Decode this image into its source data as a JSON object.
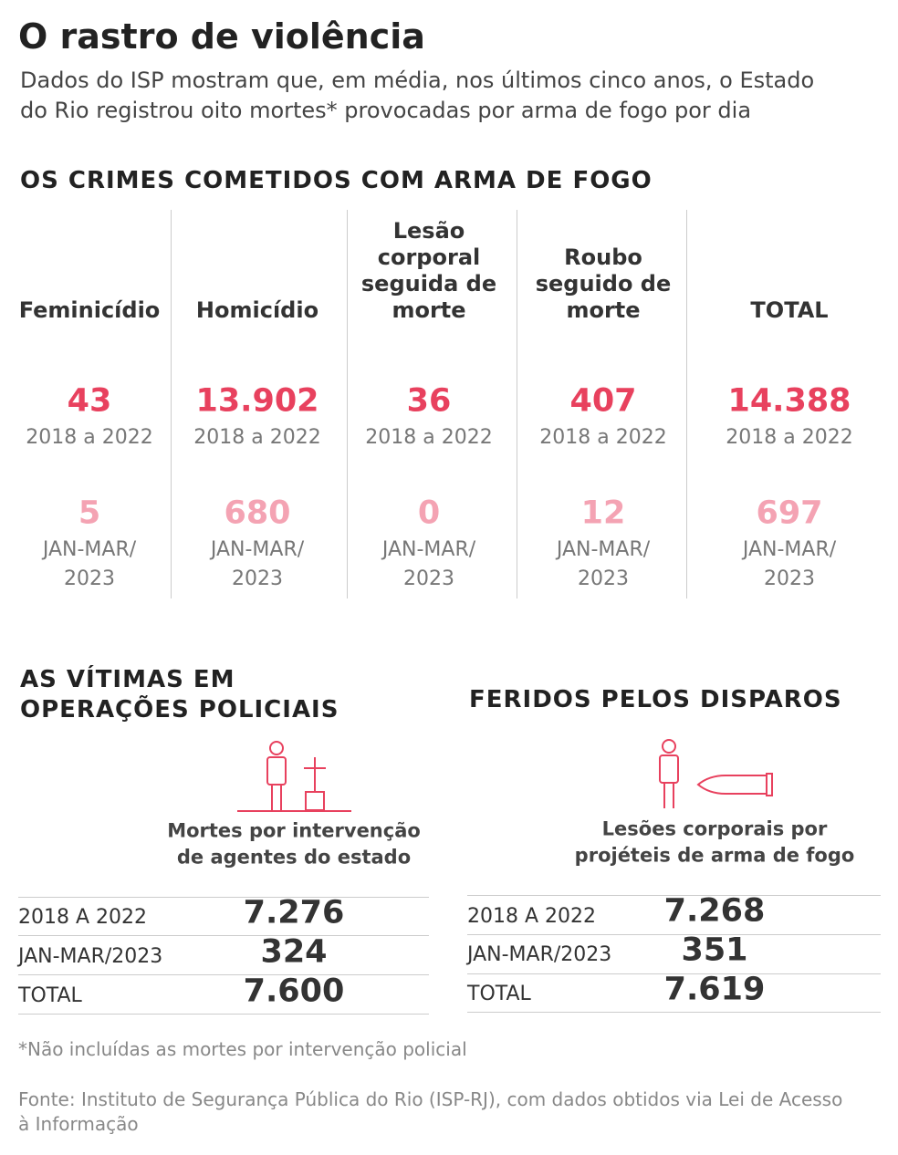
{
  "header": {
    "title": "O rastro de violência",
    "subtitle": [
      "Dados do ISP mostram que, em média, nos últimos cinco anos, o Estado",
      "do Rio registrou oito mortes* provocadas por arma de fogo por dia"
    ]
  },
  "crimes": {
    "heading": "OS CRIMES COMETIDOS COM ARMA DE FOGO",
    "columns": [
      {
        "label": [
          "Feminicídio"
        ],
        "total": "43",
        "total_period": "2018 a 2022",
        "recent": "5",
        "recent_period": [
          "JAN-MAR/",
          "2023"
        ]
      },
      {
        "label": [
          "Homicídio"
        ],
        "total": "13.902",
        "total_period": "2018 a 2022",
        "recent": "680",
        "recent_period": [
          "JAN-MAR/",
          "2023"
        ]
      },
      {
        "label": [
          "Lesão",
          "corporal",
          "seguida de",
          "morte"
        ],
        "total": "36",
        "total_period": "2018 a 2022",
        "recent": "0",
        "recent_period": [
          "JAN-MAR/",
          "2023"
        ]
      },
      {
        "label": [
          "Roubo",
          "seguido de",
          "morte"
        ],
        "total": "407",
        "total_period": "2018 a 2022",
        "recent": "12",
        "recent_period": [
          "JAN-MAR/",
          "2023"
        ]
      },
      {
        "label": [
          "TOTAL"
        ],
        "total": "14.388",
        "total_period": "2018 a 2022",
        "recent": "697",
        "recent_period": [
          "JAN-MAR/",
          "2023"
        ]
      }
    ]
  },
  "panels": [
    {
      "heading": [
        "AS VÍTIMAS EM",
        "OPERAÇÕES POLICIAIS"
      ],
      "caption": [
        "Mortes por intervenção",
        "de agentes do estado"
      ],
      "rows": [
        [
          "2018 A 2022",
          "7.276"
        ],
        [
          "JAN-MAR/2023",
          "324"
        ],
        [
          "TOTAL",
          "7.600"
        ]
      ]
    },
    {
      "heading": [
        "FERIDOS PELOS DISPAROS"
      ],
      "caption": [
        "Lesões corporais por",
        "projéteis de arma de fogo"
      ],
      "rows": [
        [
          "2018 A 2022",
          "7.268"
        ],
        [
          "JAN-MAR/2023",
          "351"
        ],
        [
          "TOTAL",
          "7.619"
        ]
      ]
    }
  ],
  "footnote": "*Não incluídas as mortes por intervenção policial",
  "source": [
    "Fonte: Instituto de Segurança Pública do Rio (ISP-RJ), com dados obtidos via Lei de Acesso",
    "à Informação"
  ]
}
